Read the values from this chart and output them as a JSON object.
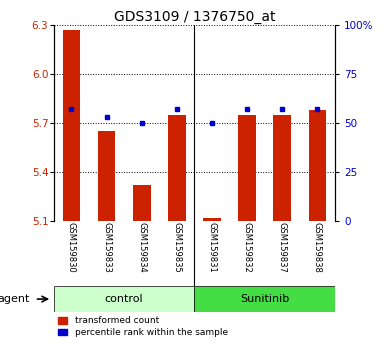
{
  "title": "GDS3109 / 1376750_at",
  "samples": [
    "GSM159830",
    "GSM159833",
    "GSM159834",
    "GSM159835",
    "GSM159831",
    "GSM159832",
    "GSM159837",
    "GSM159838"
  ],
  "groups": [
    "control",
    "control",
    "control",
    "control",
    "Sunitinib",
    "Sunitinib",
    "Sunitinib",
    "Sunitinib"
  ],
  "red_values": [
    6.27,
    5.65,
    5.32,
    5.75,
    5.12,
    5.75,
    5.75,
    5.78
  ],
  "blue_values": [
    57,
    53,
    50,
    57,
    50,
    57,
    57,
    57
  ],
  "y_min": 5.1,
  "y_max": 6.3,
  "y_ticks": [
    5.1,
    5.4,
    5.7,
    6.0,
    6.3
  ],
  "y2_ticks": [
    0,
    25,
    50,
    75,
    100
  ],
  "bar_color": "#cc2200",
  "dot_color": "#0000cc",
  "control_bg": "#ccffcc",
  "sunitinib_bg": "#44dd44",
  "xlabel_area_bg": "#cccccc",
  "agent_label": "agent",
  "group_labels": [
    "control",
    "Sunitinib"
  ],
  "legend1": "transformed count",
  "legend2": "percentile rank within the sample"
}
